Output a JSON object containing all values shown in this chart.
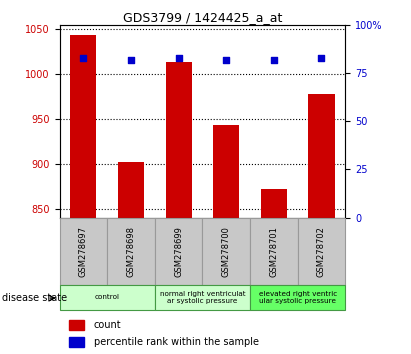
{
  "title": "GDS3799 / 1424425_a_at",
  "samples": [
    "GSM278697",
    "GSM278698",
    "GSM278699",
    "GSM278700",
    "GSM278701",
    "GSM278702"
  ],
  "count_values": [
    1044,
    902,
    1013,
    943,
    872,
    978
  ],
  "percentile_values": [
    83,
    82,
    83,
    82,
    82,
    83
  ],
  "ylim_left": [
    840,
    1055
  ],
  "ylim_right": [
    0,
    100
  ],
  "yticks_left": [
    850,
    900,
    950,
    1000,
    1050
  ],
  "yticks_right": [
    0,
    25,
    50,
    75,
    100
  ],
  "bar_color": "#cc0000",
  "dot_color": "#0000cc",
  "bar_bottom": 840,
  "grid_color": "#000000",
  "tick_label_color_left": "#cc0000",
  "tick_label_color_right": "#0000cc",
  "background_color": "#ffffff",
  "sample_bg_color": "#c8c8c8",
  "control_color": "#ccffcc",
  "elevated_color": "#66ff66",
  "disease_groups": [
    {
      "label": "control",
      "start": 0,
      "end": 2,
      "color": "#ccffcc"
    },
    {
      "label": "normal right ventriculat\nar systolic pressure",
      "start": 2,
      "end": 4,
      "color": "#ccffcc"
    },
    {
      "label": "elevated right ventric\nular systolic pressure",
      "start": 4,
      "end": 6,
      "color": "#66ff66"
    }
  ]
}
